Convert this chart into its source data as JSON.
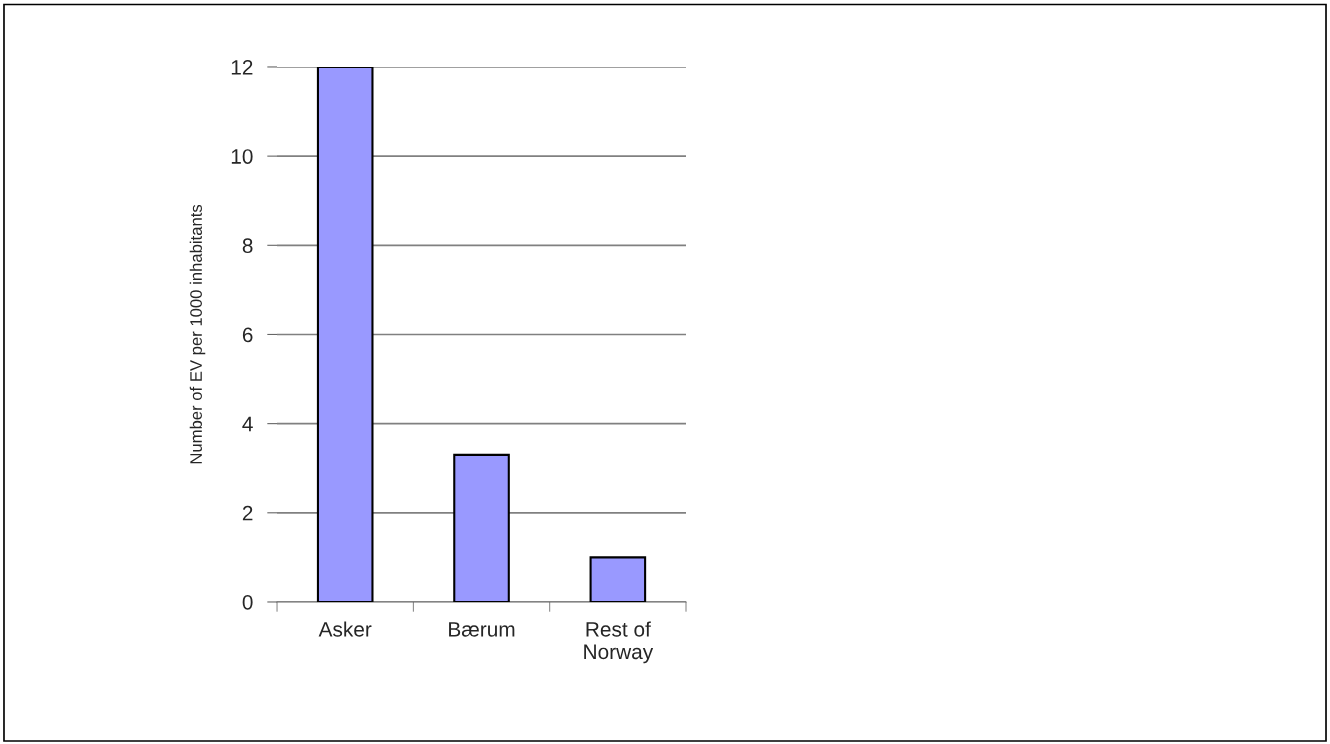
{
  "chart_data": {
    "type": "bar",
    "ylabel": "Number of EV per 1000 inhabitants",
    "categories": [
      "Asker",
      "Bærum",
      "Rest of\nNorway"
    ],
    "values": [
      12.0,
      3.3,
      1.0
    ],
    "color": "#9999ff",
    "ylim": [
      0,
      12
    ],
    "yticks": [
      0,
      2,
      4,
      6,
      8,
      10,
      12
    ],
    "grid": "y"
  }
}
